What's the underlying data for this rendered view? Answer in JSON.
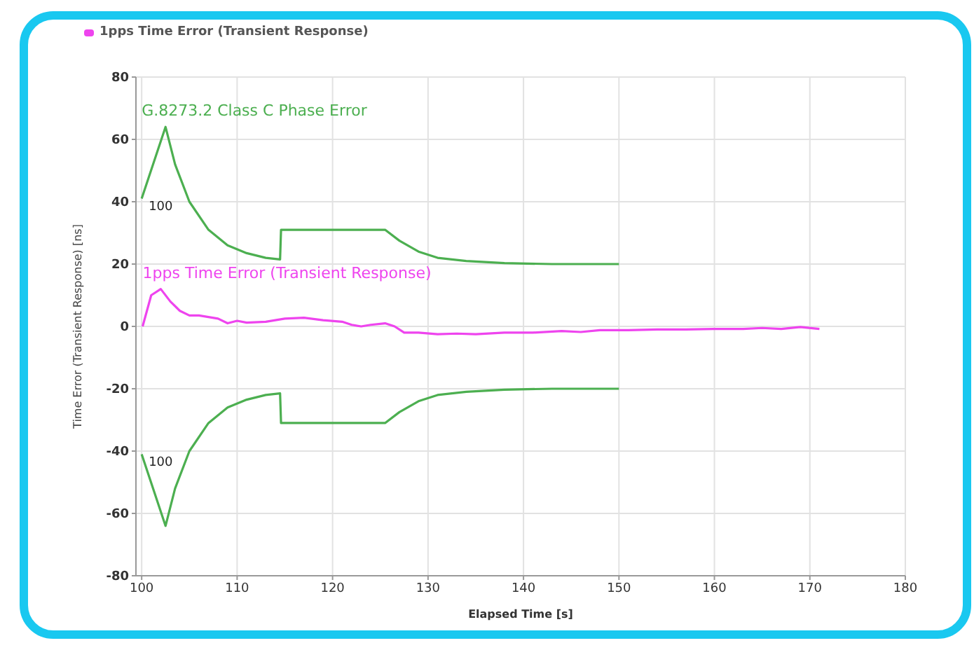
{
  "chart_data": {
    "type": "line",
    "xlabel": "Elapsed Time [s]",
    "ylabel": "Time Error (Transient Response) [ns]",
    "xlim": [
      99.4,
      180
    ],
    "xticks": [
      100,
      110,
      120,
      130,
      140,
      150,
      160,
      170,
      180
    ],
    "ylim": [
      -80,
      80
    ],
    "yticks": [
      -80,
      -60,
      -40,
      -20,
      0,
      20,
      40,
      60,
      80
    ],
    "grid": true,
    "legend": "top left",
    "marker": "none",
    "line_style": "solid",
    "series": [
      {
        "name": "G.8273.2 Class C Phase Error",
        "color": "#4caf50",
        "x": [
          100,
          102.5,
          103.5,
          105,
          107,
          109,
          111,
          113,
          114.5,
          114.6,
          115.5,
          125.5,
          127,
          129,
          131,
          134,
          138,
          143,
          150
        ],
        "values": [
          41,
          64,
          52,
          40,
          31,
          26,
          23.5,
          22,
          21.5,
          31,
          31,
          31,
          27.5,
          24,
          22,
          21,
          20.3,
          20,
          20
        ]
      },
      {
        "color": "#4caf50",
        "x": [
          100,
          102.5,
          103.5,
          105,
          107,
          109,
          111,
          113,
          114.5,
          114.6,
          115.5,
          125.5,
          127,
          129,
          131,
          134,
          138,
          143,
          150
        ],
        "values": [
          -41,
          -64,
          -52,
          -40,
          -31,
          -26,
          -23.5,
          -22,
          -21.5,
          -31,
          -31,
          -31,
          -27.5,
          -24,
          -22,
          -21,
          -20.3,
          -20,
          -20
        ]
      },
      {
        "name": "1pps Time Error (Transient Response)",
        "color": "#ee44ee",
        "x": [
          100.1,
          101,
          102,
          103,
          104,
          105,
          106,
          107,
          108,
          109,
          110,
          111,
          113,
          115,
          117,
          119,
          121,
          122,
          123,
          124,
          125.5,
          126.5,
          127.5,
          129,
          131,
          133,
          135,
          138,
          141,
          144,
          146,
          148,
          151,
          154,
          157,
          160,
          163,
          165,
          167,
          169,
          171
        ],
        "values": [
          0,
          10,
          12,
          8,
          5,
          3.5,
          3.5,
          3,
          2.5,
          1,
          1.8,
          1.2,
          1.5,
          2.5,
          2.8,
          2,
          1.5,
          0.5,
          0,
          0.5,
          1,
          0,
          -2,
          -2,
          -2.5,
          -2.3,
          -2.5,
          -2,
          -2,
          -1.5,
          -1.8,
          -1.2,
          -1.2,
          -1,
          -1,
          -0.8,
          -0.8,
          -0.5,
          -0.8,
          -0.2,
          -0.8
        ]
      }
    ],
    "annotations": [
      "100",
      "100"
    ]
  }
}
